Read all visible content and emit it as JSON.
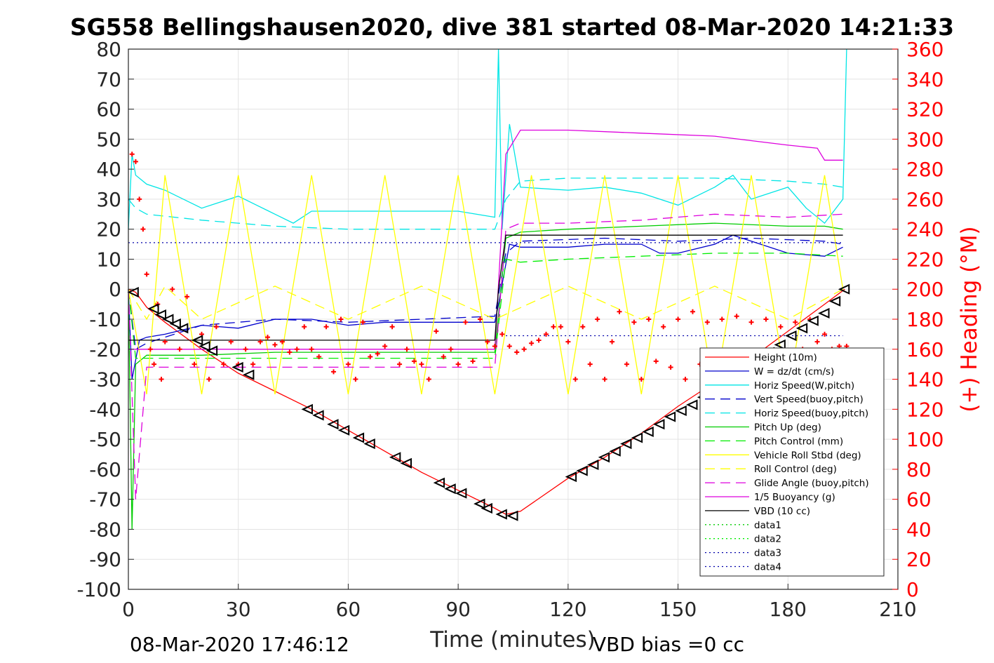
{
  "chart_data": {
    "type": "line",
    "title": "SG558 Bellingshausen2020, dive 381 started 08-Mar-2020 14:21:33",
    "xlabel": "Time (minutes)",
    "ylabel": "",
    "y2label": "(+) Heading (°M)",
    "xlim": [
      0,
      210
    ],
    "ylim": [
      -100,
      80
    ],
    "y2lim": [
      0,
      360
    ],
    "xticks": [
      0,
      30,
      60,
      90,
      120,
      150,
      180,
      210
    ],
    "yticks": [
      80,
      70,
      60,
      50,
      40,
      30,
      20,
      10,
      0,
      -10,
      -20,
      -30,
      -40,
      -50,
      -60,
      -70,
      -80,
      -90,
      -100
    ],
    "y2ticks": [
      360,
      340,
      320,
      300,
      280,
      260,
      240,
      220,
      200,
      180,
      160,
      140,
      120,
      100,
      80,
      60,
      40,
      20,
      0
    ],
    "grid": true,
    "legend_position": "lower-right",
    "footer_left": "08-Mar-2020 17:46:12",
    "footer_right": "VBD bias =0 cc",
    "series": [
      {
        "name": "Height (10m)",
        "color": "#ff0000",
        "style": "solid",
        "x": [
          0,
          2,
          5,
          10,
          20,
          30,
          50,
          60,
          70,
          80,
          90,
          100,
          103,
          107,
          120,
          130,
          140,
          150,
          160,
          170,
          180,
          190,
          195.5
        ],
        "y": [
          0,
          -1,
          -6,
          -11,
          -20,
          -28,
          -40,
          -47,
          -54,
          -61,
          -67,
          -73,
          -75,
          -74,
          -63,
          -56,
          -48,
          -39,
          -31,
          -23,
          -14,
          -5,
          0
        ]
      },
      {
        "name": "W = dz/dt (cm/s)",
        "color": "#0000cc",
        "style": "solid",
        "x": [
          0,
          1,
          3,
          5,
          10,
          20,
          30,
          40,
          50,
          60,
          70,
          80,
          90,
          100,
          101,
          104,
          107,
          120,
          130,
          140,
          145,
          150,
          160,
          165,
          170,
          180,
          190,
          195
        ],
        "y": [
          0,
          -30,
          -17,
          -16,
          -15,
          -12,
          -13,
          -10,
          -10,
          -12,
          -11,
          -11,
          -11,
          -11,
          -5,
          15,
          14,
          14,
          15,
          15,
          12,
          12,
          15,
          18,
          16,
          12,
          11,
          14
        ]
      },
      {
        "name": "Horiz Speed(W,pitch)",
        "color": "#00e5e5",
        "style": "solid",
        "x": [
          0,
          1,
          2,
          5,
          10,
          20,
          30,
          35,
          40,
          45,
          50,
          60,
          70,
          80,
          90,
          100,
          101,
          102,
          104,
          107,
          120,
          130,
          140,
          150,
          160,
          165,
          170,
          180,
          185,
          190,
          195,
          196
        ],
        "y": [
          20,
          45,
          38,
          35,
          33,
          27,
          31,
          28,
          25,
          22,
          26,
          26,
          26,
          26,
          26,
          24,
          80,
          20,
          55,
          34,
          33,
          34,
          32,
          28,
          34,
          38,
          30,
          34,
          27,
          22,
          30,
          80
        ]
      },
      {
        "name": "Vert Speed(buoy,pitch)",
        "color": "#0000cc",
        "style": "dashed",
        "x": [
          0,
          2,
          5,
          20,
          40,
          60,
          80,
          100,
          103,
          107,
          130,
          150,
          170,
          190,
          195
        ],
        "y": [
          0,
          -20,
          -18,
          -12,
          -10,
          -11,
          -10,
          -9,
          12,
          16,
          17,
          16,
          17,
          16,
          15
        ]
      },
      {
        "name": "Horiz Speed(buoy,pitch)",
        "color": "#00e5e5",
        "style": "dashed",
        "x": [
          0,
          2,
          5,
          20,
          30,
          40,
          60,
          80,
          100,
          103,
          107,
          120,
          140,
          160,
          180,
          190,
          195
        ],
        "y": [
          30,
          27,
          25,
          23,
          22,
          21,
          20,
          20,
          20,
          30,
          36,
          37,
          37,
          37,
          36,
          35,
          34
        ]
      },
      {
        "name": "Pitch Up (deg)",
        "color": "#00cc00",
        "style": "solid",
        "x": [
          0,
          1,
          2,
          5,
          20,
          40,
          60,
          80,
          100,
          103,
          107,
          120,
          140,
          160,
          180,
          190,
          195
        ],
        "y": [
          0,
          -80,
          -25,
          -22,
          -22,
          -21,
          -21,
          -21,
          -21,
          17,
          19,
          20,
          21,
          22,
          21,
          21,
          20
        ]
      },
      {
        "name": "Pitch Control (mm)",
        "color": "#00ee00",
        "style": "dashed",
        "x": [
          0,
          2,
          5,
          20,
          40,
          60,
          80,
          100,
          103,
          107,
          120,
          140,
          160,
          180,
          195
        ],
        "y": [
          0,
          -23,
          -23,
          -23,
          -23,
          -23,
          -23,
          -23,
          10,
          9,
          10,
          11,
          12,
          12,
          11
        ]
      },
      {
        "name": "Vehicle Roll Stbd (deg)",
        "color": "#ffff00",
        "style": "solid",
        "x": [
          0,
          5,
          10,
          20,
          30,
          40,
          50,
          60,
          70,
          80,
          90,
          100,
          110,
          120,
          130,
          140,
          150,
          160,
          170,
          180,
          190,
          195
        ],
        "y": [
          0,
          -35,
          38,
          -35,
          38,
          -35,
          38,
          -35,
          38,
          -35,
          38,
          -35,
          38,
          -35,
          38,
          -35,
          38,
          -35,
          38,
          -35,
          38,
          0
        ]
      },
      {
        "name": "Roll Control (deg)",
        "color": "#ffff00",
        "style": "dashed",
        "x": [
          0,
          5,
          10,
          20,
          40,
          60,
          80,
          100,
          120,
          140,
          160,
          180,
          195
        ],
        "y": [
          0,
          -10,
          1,
          -10,
          1,
          -10,
          1,
          -10,
          1,
          -10,
          1,
          -10,
          0
        ]
      },
      {
        "name": "Glide Angle (buoy,pitch)",
        "color": "#dd00dd",
        "style": "dashed",
        "x": [
          0,
          2,
          5,
          20,
          40,
          60,
          80,
          100,
          103,
          107,
          120,
          140,
          160,
          180,
          195
        ],
        "y": [
          0,
          -70,
          -26,
          -26,
          -26,
          -26,
          -26,
          -26,
          20,
          22,
          22,
          23,
          25,
          24,
          25
        ]
      },
      {
        "name": "1/5 Buoyancy (g)",
        "color": "#dd00dd",
        "style": "solid",
        "x": [
          0,
          2,
          5,
          30,
          60,
          100,
          103,
          107,
          120,
          140,
          160,
          180,
          188,
          190,
          195
        ],
        "y": [
          -20,
          -20,
          -20,
          -20,
          -20,
          -20,
          45,
          53,
          53,
          52,
          51,
          48,
          47,
          43,
          43
        ]
      },
      {
        "name": "VBD (10 cc)",
        "color": "#000000",
        "style": "solid",
        "x": [
          0,
          2,
          100,
          101,
          103,
          107,
          195
        ],
        "y": [
          -17,
          -17,
          -17,
          0,
          18,
          18,
          18
        ]
      },
      {
        "name": "data1",
        "color": "#00cc00",
        "style": "dotted",
        "x": [],
        "y": []
      },
      {
        "name": "data2",
        "color": "#00ee00",
        "style": "dotted",
        "x": [],
        "y": []
      },
      {
        "name": "data3",
        "color": "#0000aa",
        "style": "dotted",
        "x": [
          0,
          195
        ],
        "y": [
          15.5,
          15.5
        ]
      },
      {
        "name": "data4",
        "color": "#0000aa",
        "style": "dotted",
        "x": [
          103,
          195
        ],
        "y": [
          -15.5,
          -15.5
        ]
      }
    ],
    "heading": {
      "name": "(+) Heading (°M)",
      "color": "#ff0000",
      "marker": "+",
      "axis": "right",
      "x": [
        1,
        2,
        3,
        4,
        5,
        6,
        7,
        8,
        9,
        10,
        12,
        14,
        16,
        18,
        20,
        22,
        24,
        26,
        28,
        30,
        32,
        34,
        36,
        38,
        40,
        42,
        44,
        46,
        48,
        50,
        52,
        54,
        56,
        58,
        60,
        62,
        64,
        66,
        68,
        70,
        72,
        74,
        76,
        78,
        80,
        82,
        84,
        86,
        88,
        90,
        92,
        94,
        96,
        98,
        100,
        102,
        104,
        106,
        108,
        110,
        112,
        114,
        116,
        118,
        120,
        122,
        124,
        126,
        128,
        130,
        132,
        134,
        136,
        138,
        140,
        142,
        144,
        146,
        148,
        150,
        152,
        154,
        156,
        158,
        160,
        162,
        164,
        166,
        168,
        170,
        172,
        174,
        176,
        178,
        180,
        182,
        184,
        186,
        188,
        190,
        192,
        194,
        196
      ],
      "y": [
        290,
        285,
        260,
        240,
        210,
        160,
        150,
        190,
        140,
        165,
        200,
        160,
        195,
        150,
        170,
        140,
        175,
        150,
        165,
        150,
        160,
        150,
        165,
        168,
        163,
        165,
        158,
        160,
        175,
        160,
        155,
        175,
        145,
        180,
        150,
        140,
        178,
        155,
        157,
        162,
        175,
        150,
        160,
        152,
        150,
        140,
        172,
        155,
        160,
        150,
        178,
        152,
        180,
        165,
        162,
        170,
        162,
        158,
        160,
        164,
        166,
        170,
        175,
        175,
        165,
        140,
        175,
        150,
        180,
        140,
        165,
        185,
        150,
        178,
        140,
        180,
        152,
        175,
        148,
        180,
        140,
        185,
        150,
        178,
        142,
        180,
        150,
        182,
        152,
        178,
        150,
        180,
        155,
        175,
        150,
        178,
        160,
        180,
        165,
        170,
        160,
        162,
        162
      ]
    },
    "depth_markers": {
      "name": "depth triangles",
      "color": "#000000",
      "x": [
        1.5,
        7,
        9,
        11,
        13,
        15,
        19,
        21,
        23,
        30,
        33,
        49,
        52,
        56,
        59,
        63,
        66,
        73,
        76,
        85,
        88,
        91,
        96,
        98,
        102,
        105,
        121,
        124,
        127,
        130,
        133,
        136,
        139,
        142,
        145,
        148,
        151,
        154,
        157,
        160,
        163,
        166,
        169,
        172,
        175,
        178,
        181,
        184,
        187,
        190,
        193,
        195.5
      ],
      "y": [
        -1,
        -6.5,
        -8.5,
        -10,
        -11.5,
        -13,
        -17,
        -19,
        -20.5,
        -26,
        -28.5,
        -40,
        -42,
        -45,
        -47,
        -49.5,
        -51.5,
        -56,
        -58,
        -64.5,
        -66.5,
        -68,
        -71.5,
        -73,
        -75,
        -75.5,
        -62.5,
        -60.5,
        -58.5,
        -56,
        -54,
        -51.5,
        -49.5,
        -47.5,
        -45,
        -42.5,
        -40.5,
        -38.5,
        -36,
        -33.5,
        -31,
        -28.5,
        -26,
        -23.5,
        -21,
        -18.5,
        -15.5,
        -13,
        -10.5,
        -8,
        -4,
        0
      ]
    }
  }
}
